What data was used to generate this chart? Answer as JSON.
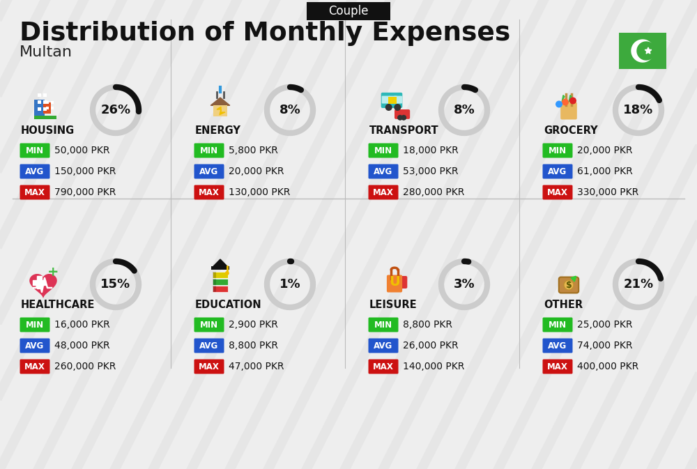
{
  "title": "Distribution of Monthly Expenses",
  "subtitle": "Multan",
  "tag": "Couple",
  "bg_color": "#eeeeee",
  "categories": [
    {
      "name": "HOUSING",
      "pct": 26,
      "row": 0,
      "col": 0,
      "min_val": "50,000 PKR",
      "avg_val": "150,000 PKR",
      "max_val": "790,000 PKR"
    },
    {
      "name": "ENERGY",
      "pct": 8,
      "row": 0,
      "col": 1,
      "min_val": "5,800 PKR",
      "avg_val": "20,000 PKR",
      "max_val": "130,000 PKR"
    },
    {
      "name": "TRANSPORT",
      "pct": 8,
      "row": 0,
      "col": 2,
      "min_val": "18,000 PKR",
      "avg_val": "53,000 PKR",
      "max_val": "280,000 PKR"
    },
    {
      "name": "GROCERY",
      "pct": 18,
      "row": 0,
      "col": 3,
      "min_val": "20,000 PKR",
      "avg_val": "61,000 PKR",
      "max_val": "330,000 PKR"
    },
    {
      "name": "HEALTHCARE",
      "pct": 15,
      "row": 1,
      "col": 0,
      "min_val": "16,000 PKR",
      "avg_val": "48,000 PKR",
      "max_val": "260,000 PKR"
    },
    {
      "name": "EDUCATION",
      "pct": 1,
      "row": 1,
      "col": 1,
      "min_val": "2,900 PKR",
      "avg_val": "8,800 PKR",
      "max_val": "47,000 PKR"
    },
    {
      "name": "LEISURE",
      "pct": 3,
      "row": 1,
      "col": 2,
      "min_val": "8,800 PKR",
      "avg_val": "26,000 PKR",
      "max_val": "140,000 PKR"
    },
    {
      "name": "OTHER",
      "pct": 21,
      "row": 1,
      "col": 3,
      "min_val": "25,000 PKR",
      "avg_val": "74,000 PKR",
      "max_val": "400,000 PKR"
    }
  ],
  "min_color": "#22bb22",
  "avg_color": "#2255cc",
  "max_color": "#cc1111",
  "arc_dark": "#111111",
  "arc_light": "#cccccc",
  "stripe_color": "#d8d8d8",
  "flag_green": "#3daa3d",
  "tag_bg": "#111111"
}
